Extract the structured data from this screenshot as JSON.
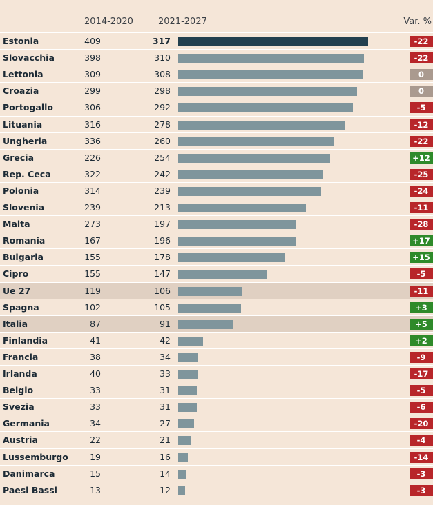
{
  "colors": {
    "negative": "#b8262a",
    "positive": "#2f8a2a",
    "neutral": "#aa9a8f",
    "bar": "#7f959c",
    "bar_top": "#23404f",
    "highlight_row": "#e0d0c2"
  },
  "chart_data": {
    "type": "bar",
    "headers": {
      "col1": "2014-2020",
      "col2": "2021-2027",
      "var": "Var. %"
    },
    "xlim": [
      0,
      317
    ],
    "rows": [
      {
        "name": "Estonia",
        "v2014": "409",
        "v2021": "317",
        "var": "-22",
        "value": 317
      },
      {
        "name": "Slovacchia",
        "v2014": "398",
        "v2021": "310",
        "var": "-22",
        "value": 310
      },
      {
        "name": "Lettonia",
        "v2014": "309",
        "v2021": "308",
        "var": "0",
        "value": 308
      },
      {
        "name": "Croazia",
        "v2014": "299",
        "v2021": "298",
        "var": "0",
        "value": 298
      },
      {
        "name": "Portogallo",
        "v2014": "306",
        "v2021": "292",
        "var": "-5",
        "value": 292
      },
      {
        "name": "Lituania",
        "v2014": "316",
        "v2021": "278",
        "var": "-12",
        "value": 278
      },
      {
        "name": "Ungheria",
        "v2014": "336",
        "v2021": "260",
        "var": "-22",
        "value": 260
      },
      {
        "name": "Grecia",
        "v2014": "226",
        "v2021": "254",
        "var": "+12",
        "value": 254
      },
      {
        "name": "Rep. Ceca",
        "v2014": "322",
        "v2021": "242",
        "var": "-25",
        "value": 242
      },
      {
        "name": "Polonia",
        "v2014": "314",
        "v2021": "239",
        "var": "-24",
        "value": 239
      },
      {
        "name": "Slovenia",
        "v2014": "239",
        "v2021": "213",
        "var": "-11",
        "value": 213
      },
      {
        "name": "Malta",
        "v2014": "273",
        "v2021": "197",
        "var": "-28",
        "value": 197
      },
      {
        "name": "Romania",
        "v2014": "167",
        "v2021": "196",
        "var": "+17",
        "value": 196
      },
      {
        "name": "Bulgaria",
        "v2014": "155",
        "v2021": "178",
        "var": "+15",
        "value": 178
      },
      {
        "name": "Cipro",
        "v2014": "155",
        "v2021": "147",
        "var": "-5",
        "value": 147
      },
      {
        "name": "Ue 27",
        "v2014": "119",
        "v2021": "106",
        "var": "-11",
        "value": 106,
        "highlight": true
      },
      {
        "name": "Spagna",
        "v2014": "102",
        "v2021": "105",
        "var": "+3",
        "value": 105
      },
      {
        "name": "Italia",
        "v2014": "87",
        "v2021": "91",
        "var": "+5",
        "value": 91,
        "highlight": true
      },
      {
        "name": "Finlandia",
        "v2014": "41",
        "v2021": "42",
        "var": "+2",
        "value": 42
      },
      {
        "name": "Francia",
        "v2014": "38",
        "v2021": "34",
        "var": "-9",
        "value": 34
      },
      {
        "name": "Irlanda",
        "v2014": "40",
        "v2021": "33",
        "var": "-17",
        "value": 33
      },
      {
        "name": "Belgio",
        "v2014": "33",
        "v2021": "31",
        "var": "-5",
        "value": 31
      },
      {
        "name": "Svezia",
        "v2014": "33",
        "v2021": "31",
        "var": "-6",
        "value": 31
      },
      {
        "name": "Germania",
        "v2014": "34",
        "v2021": "27",
        "var": "-20",
        "value": 27
      },
      {
        "name": "Austria",
        "v2014": "22",
        "v2021": "21",
        "var": "-4",
        "value": 21
      },
      {
        "name": "Lussemburgo",
        "v2014": "19",
        "v2021": "16",
        "var": "-14",
        "value": 16
      },
      {
        "name": "Danimarca",
        "v2014": "15",
        "v2021": "14",
        "var": "-3",
        "value": 14
      },
      {
        "name": "Paesi Bassi",
        "v2014": "13",
        "v2021": "12",
        "var": "-3",
        "value": 12
      }
    ]
  }
}
